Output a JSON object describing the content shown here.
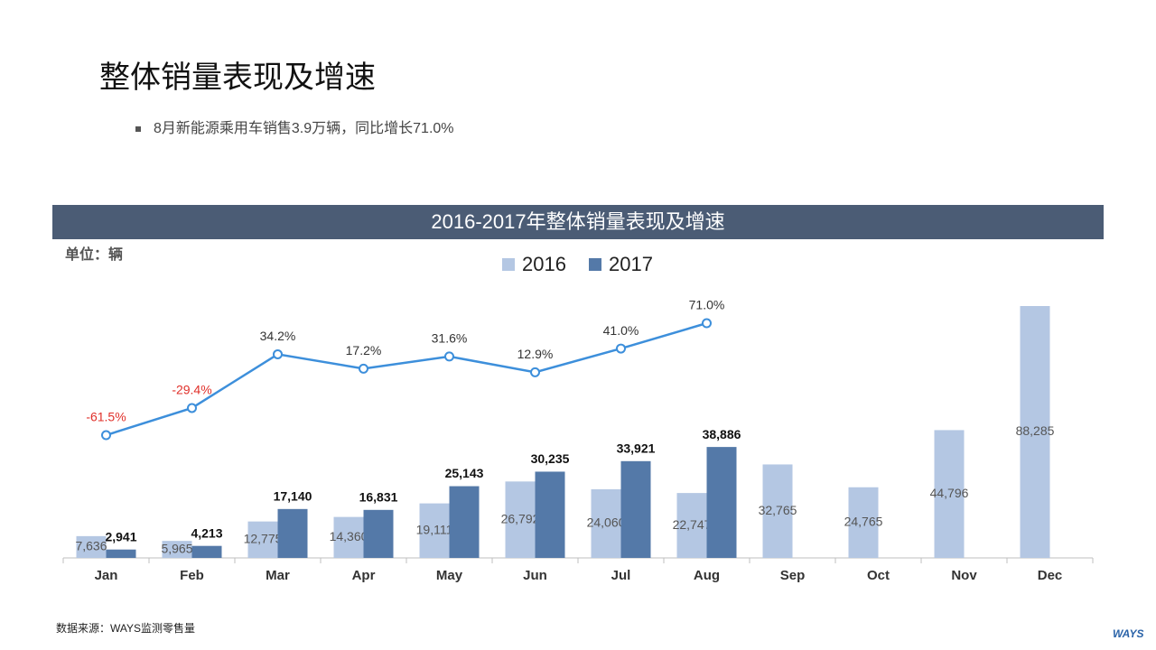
{
  "page": {
    "title": "整体销量表现及增速",
    "bullet": "8月新能源乘用车销售3.9万辆，同比增长71.0%",
    "source": "数据来源：WAYS监测零售量",
    "logo": "WAYS"
  },
  "chart_data": {
    "type": "bar",
    "title": "2016-2017年整体销量表现及增速",
    "unit": "单位：辆",
    "categories": [
      "Jan",
      "Feb",
      "Mar",
      "Apr",
      "May",
      "Jun",
      "Jul",
      "Aug",
      "Sep",
      "Oct",
      "Nov",
      "Dec"
    ],
    "series": [
      {
        "name": "2016",
        "color": "#b4c7e3",
        "values": [
          7636,
          5965,
          12775,
          14360,
          19111,
          26792,
          24060,
          22747,
          32765,
          24765,
          44796,
          88285
        ],
        "value_labels": [
          "7,636",
          "5,965",
          "12,775",
          "14,360",
          "19,111",
          "26,792",
          "24,060",
          "22,747",
          "32,765",
          "24,765",
          "44,796",
          "88,285"
        ]
      },
      {
        "name": "2017",
        "color": "#5479a8",
        "values": [
          2941,
          4213,
          17140,
          16831,
          25143,
          30235,
          33921,
          38886,
          null,
          null,
          null,
          null
        ],
        "value_labels": [
          "2,941",
          "4,213",
          "17,140",
          "16,831",
          "25,143",
          "30,235",
          "33,921",
          "38,886",
          null,
          null,
          null,
          null
        ]
      }
    ],
    "line": {
      "color": "#3d8fdb",
      "negative_color": "#e0302a",
      "values": [
        -61.5,
        -29.4,
        34.2,
        17.2,
        31.6,
        12.9,
        41.0,
        71.0,
        null,
        null,
        null,
        null
      ],
      "value_labels": [
        "-61.5%",
        "-29.4%",
        "34.2%",
        "17.2%",
        "31.6%",
        "12.9%",
        "41.0%",
        "71.0%",
        null,
        null,
        null,
        null
      ]
    }
  }
}
